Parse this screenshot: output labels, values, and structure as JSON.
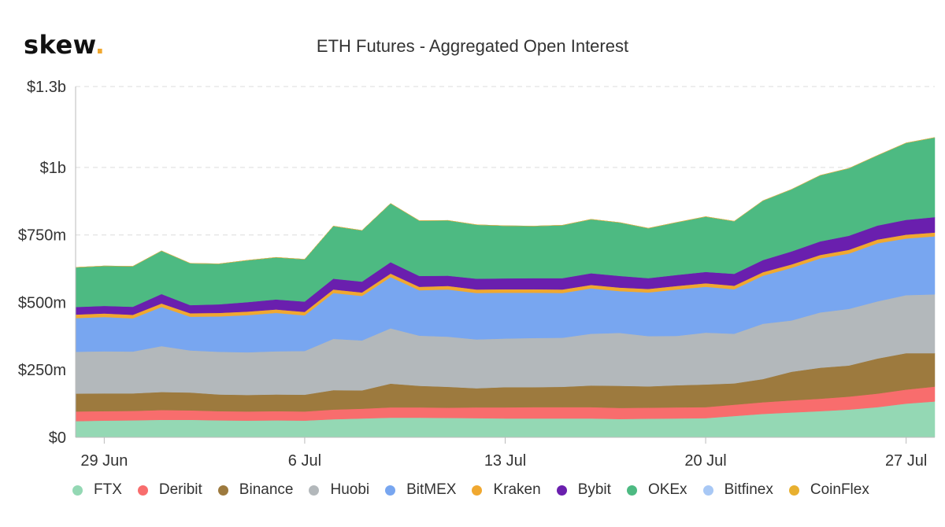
{
  "header": {
    "logo_text": "skew",
    "logo_dot": "."
  },
  "chart_data": {
    "type": "area",
    "stacked": true,
    "title": "ETH Futures - Aggregated Open Interest",
    "xlabel": "",
    "ylabel": "",
    "ylim": [
      0,
      1300
    ],
    "y_ticks": [
      0,
      250,
      500,
      750,
      1000,
      1300
    ],
    "y_tick_labels": [
      "$0",
      "$250m",
      "$500m",
      "$750m",
      "$1b",
      "$1.3b"
    ],
    "x_tick_labels": [
      "29 Jun",
      "6 Jul",
      "13 Jul",
      "20 Jul",
      "27 Jul"
    ],
    "x_tick_dates": [
      "2020-06-29",
      "2020-07-06",
      "2020-07-13",
      "2020-07-20",
      "2020-07-27"
    ],
    "x": [
      "2020-06-28",
      "2020-06-29",
      "2020-06-30",
      "2020-07-01",
      "2020-07-02",
      "2020-07-03",
      "2020-07-04",
      "2020-07-05",
      "2020-07-06",
      "2020-07-07",
      "2020-07-08",
      "2020-07-09",
      "2020-07-10",
      "2020-07-11",
      "2020-07-12",
      "2020-07-13",
      "2020-07-14",
      "2020-07-15",
      "2020-07-16",
      "2020-07-17",
      "2020-07-18",
      "2020-07-19",
      "2020-07-20",
      "2020-07-21",
      "2020-07-22",
      "2020-07-23",
      "2020-07-24",
      "2020-07-25",
      "2020-07-26",
      "2020-07-27",
      "2020-07-28"
    ],
    "grid": true,
    "legend_position": "bottom",
    "series": [
      {
        "name": "FTX",
        "color": "#94d8b4",
        "values": [
          60,
          62,
          63,
          65,
          65,
          63,
          62,
          63,
          62,
          67,
          70,
          73,
          73,
          72,
          71,
          70,
          70,
          70,
          70,
          68,
          69,
          70,
          71,
          79,
          87,
          92,
          97,
          103,
          112,
          125,
          133
        ]
      },
      {
        "name": "Deribit",
        "color": "#f86d6d",
        "values": [
          36,
          35,
          35,
          36,
          35,
          34,
          34,
          34,
          34,
          36,
          36,
          38,
          38,
          38,
          40,
          41,
          42,
          42,
          42,
          41,
          41,
          41,
          41,
          42,
          43,
          45,
          46,
          48,
          50,
          52,
          55
        ]
      },
      {
        "name": "Binance",
        "color": "#9d7a3e",
        "values": [
          66,
          66,
          65,
          67,
          66,
          62,
          61,
          62,
          62,
          72,
          68,
          88,
          80,
          77,
          71,
          75,
          74,
          75,
          80,
          82,
          79,
          82,
          84,
          79,
          86,
          106,
          115,
          115,
          130,
          135,
          124
        ]
      },
      {
        "name": "Huobi",
        "color": "#b3b8bb",
        "values": [
          155,
          156,
          155,
          170,
          156,
          158,
          158,
          160,
          162,
          190,
          185,
          205,
          186,
          186,
          181,
          180,
          182,
          182,
          192,
          196,
          186,
          183,
          192,
          184,
          205,
          190,
          205,
          210,
          212,
          215,
          218
        ]
      },
      {
        "name": "BitMEX",
        "color": "#78a6f0",
        "values": [
          125,
          127,
          123,
          145,
          125,
          131,
          138,
          142,
          132,
          170,
          165,
          190,
          168,
          175,
          172,
          170,
          168,
          166,
          168,
          155,
          162,
          172,
          170,
          165,
          178,
          195,
          200,
          205,
          215,
          210,
          215
        ]
      },
      {
        "name": "Kraken",
        "color": "#f0a830",
        "values": [
          13,
          13,
          13,
          13,
          13,
          13,
          13,
          13,
          13,
          13,
          13,
          13,
          13,
          13,
          13,
          13,
          13,
          13,
          13,
          13,
          13,
          13,
          13,
          13,
          13,
          13,
          13,
          14,
          14,
          14,
          14
        ]
      },
      {
        "name": "Bybit",
        "color": "#6a1fae",
        "values": [
          28,
          28,
          30,
          35,
          30,
          32,
          35,
          37,
          38,
          40,
          40,
          42,
          40,
          38,
          40,
          40,
          41,
          42,
          43,
          43,
          40,
          41,
          42,
          44,
          45,
          48,
          50,
          52,
          52,
          55,
          57
        ]
      },
      {
        "name": "OKEx",
        "color": "#4dba82",
        "values": [
          147,
          148,
          150,
          160,
          155,
          150,
          155,
          156,
          157,
          195,
          190,
          218,
          205,
          205,
          200,
          195,
          193,
          196,
          200,
          198,
          185,
          195,
          205,
          195,
          220,
          230,
          245,
          250,
          260,
          285,
          295
        ]
      },
      {
        "name": "Bitfinex",
        "color": "#a8c8f5",
        "values": [
          0,
          0,
          0,
          0,
          0,
          0,
          0,
          0,
          0,
          0,
          0,
          0,
          0,
          0,
          0,
          0,
          0,
          0,
          0,
          0,
          0,
          0,
          0,
          0,
          0,
          0,
          0,
          0,
          0,
          0,
          0
        ]
      },
      {
        "name": "CoinFlex",
        "color": "#e8b030",
        "values": [
          0,
          0,
          0,
          0,
          0,
          0,
          0,
          0,
          0,
          0,
          0,
          0,
          0,
          0,
          0,
          0,
          0,
          0,
          0,
          0,
          0,
          0,
          0,
          0,
          0,
          0,
          0,
          0,
          0,
          0,
          0
        ]
      }
    ]
  }
}
